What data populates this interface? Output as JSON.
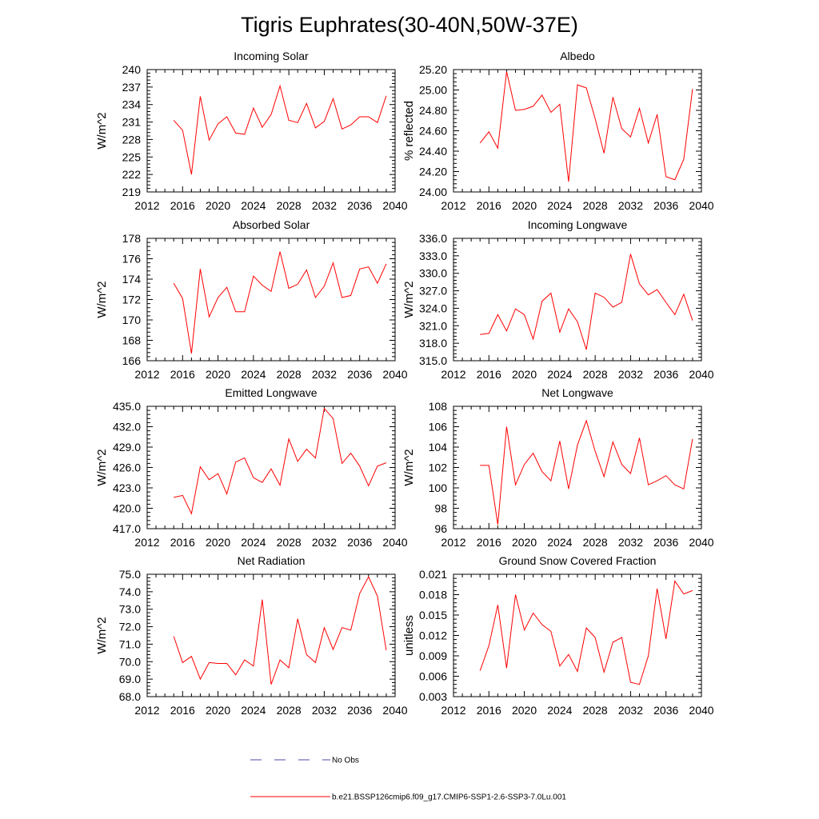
{
  "figure": {
    "title": "Tigris Euphrates(30-40N,50W-37E)"
  },
  "legend": [
    {
      "label": "No Obs",
      "color": "#4a4aa8",
      "style": "dashed"
    },
    {
      "label": "b.e21.BSSP126cmip6.f09_g17.CMIP6-SSP1-2.6-SSP3-7.0Lu.001",
      "color": "#ff0000",
      "style": "solid"
    }
  ],
  "chart_data": [
    {
      "type": "line",
      "title": "Incoming Solar",
      "xlabel": "",
      "ylabel": "W/m^2",
      "xlim": [
        2012,
        2040
      ],
      "ylim": [
        219,
        240
      ],
      "xticks": [
        2012,
        2016,
        2020,
        2024,
        2028,
        2032,
        2036,
        2040
      ],
      "yticks": [
        219,
        222,
        225,
        228,
        231,
        234,
        237,
        240
      ],
      "ytick_labels": [
        "219",
        "222",
        "225",
        "228",
        "231",
        "234",
        "237",
        "240"
      ],
      "series": [
        {
          "color": "#ff0000",
          "x": [
            2015,
            2016,
            2017,
            2018,
            2019,
            2020,
            2021,
            2022,
            2023,
            2024,
            2025,
            2026,
            2027,
            2028,
            2029,
            2030,
            2031,
            2032,
            2033,
            2034,
            2035,
            2036,
            2037,
            2038,
            2039
          ],
          "values": [
            231.3,
            229.6,
            222.0,
            235.4,
            227.9,
            230.7,
            231.9,
            229.1,
            228.9,
            233.4,
            230.1,
            232.3,
            237.2,
            231.3,
            230.9,
            234.2,
            230.0,
            231.1,
            235.0,
            229.8,
            230.5,
            231.9,
            231.9,
            230.9,
            235.5
          ]
        }
      ]
    },
    {
      "type": "line",
      "title": "Albedo",
      "xlabel": "",
      "ylabel": "% reflected",
      "xlim": [
        2012,
        2040
      ],
      "ylim": [
        24.0,
        25.2
      ],
      "xticks": [
        2012,
        2016,
        2020,
        2024,
        2028,
        2032,
        2036,
        2040
      ],
      "yticks": [
        24.0,
        24.2,
        24.4,
        24.6,
        24.8,
        25.0,
        25.2
      ],
      "ytick_labels": [
        "24.00",
        "24.20",
        "24.40",
        "24.60",
        "24.80",
        "25.00",
        "25.20"
      ],
      "series": [
        {
          "color": "#ff0000",
          "x": [
            2015,
            2016,
            2017,
            2018,
            2019,
            2020,
            2021,
            2022,
            2023,
            2024,
            2025,
            2026,
            2027,
            2028,
            2029,
            2030,
            2031,
            2032,
            2033,
            2034,
            2035,
            2036,
            2037,
            2038,
            2039
          ],
          "values": [
            24.48,
            24.59,
            24.43,
            25.18,
            24.8,
            24.81,
            24.84,
            24.95,
            24.78,
            24.86,
            24.1,
            25.05,
            25.02,
            24.72,
            24.38,
            24.93,
            24.62,
            24.54,
            24.82,
            24.48,
            24.76,
            24.15,
            24.12,
            24.32,
            25.01
          ]
        }
      ]
    },
    {
      "type": "line",
      "title": "Absorbed Solar",
      "xlabel": "",
      "ylabel": "W/m^2",
      "xlim": [
        2012,
        2040
      ],
      "ylim": [
        166,
        178
      ],
      "xticks": [
        2012,
        2016,
        2020,
        2024,
        2028,
        2032,
        2036,
        2040
      ],
      "yticks": [
        166,
        168,
        170,
        172,
        174,
        176,
        178
      ],
      "ytick_labels": [
        "166",
        "168",
        "170",
        "172",
        "174",
        "176",
        "178"
      ],
      "series": [
        {
          "color": "#ff0000",
          "x": [
            2015,
            2016,
            2017,
            2018,
            2019,
            2020,
            2021,
            2022,
            2023,
            2024,
            2025,
            2026,
            2027,
            2028,
            2029,
            2030,
            2031,
            2032,
            2033,
            2034,
            2035,
            2036,
            2037,
            2038,
            2039
          ],
          "values": [
            173.6,
            172.1,
            166.7,
            175.0,
            170.3,
            172.2,
            173.2,
            170.8,
            170.8,
            174.3,
            173.4,
            172.8,
            176.7,
            173.1,
            173.5,
            174.9,
            172.2,
            173.3,
            175.6,
            172.2,
            172.4,
            175.0,
            175.2,
            173.6,
            175.5
          ]
        }
      ]
    },
    {
      "type": "line",
      "title": "Incoming Longwave",
      "xlabel": "",
      "ylabel": "W/m^2",
      "xlim": [
        2012,
        2040
      ],
      "ylim": [
        315,
        336
      ],
      "xticks": [
        2012,
        2016,
        2020,
        2024,
        2028,
        2032,
        2036,
        2040
      ],
      "yticks": [
        315,
        318,
        321,
        324,
        327,
        330,
        333,
        336
      ],
      "ytick_labels": [
        "315.0",
        "318.0",
        "321.0",
        "324.0",
        "327.0",
        "330.0",
        "333.0",
        "336.0"
      ],
      "series": [
        {
          "color": "#ff0000",
          "x": [
            2015,
            2016,
            2017,
            2018,
            2019,
            2020,
            2021,
            2022,
            2023,
            2024,
            2025,
            2026,
            2027,
            2028,
            2029,
            2030,
            2031,
            2032,
            2033,
            2034,
            2035,
            2036,
            2037,
            2038,
            2039
          ],
          "values": [
            319.5,
            319.7,
            322.9,
            320.1,
            323.9,
            322.9,
            318.7,
            325.2,
            326.6,
            319.9,
            323.9,
            321.7,
            316.9,
            326.6,
            325.9,
            324.2,
            325.0,
            333.3,
            328.2,
            326.3,
            327.2,
            325.0,
            322.9,
            326.4,
            321.9
          ]
        }
      ]
    },
    {
      "type": "line",
      "title": "Emitted Longwave",
      "xlabel": "",
      "ylabel": "W/m^2",
      "xlim": [
        2012,
        2040
      ],
      "ylim": [
        417,
        435
      ],
      "xticks": [
        2012,
        2016,
        2020,
        2024,
        2028,
        2032,
        2036,
        2040
      ],
      "yticks": [
        417,
        420,
        423,
        426,
        429,
        432,
        435
      ],
      "ytick_labels": [
        "417.0",
        "420.0",
        "423.0",
        "426.0",
        "429.0",
        "432.0",
        "435.0"
      ],
      "series": [
        {
          "color": "#ff0000",
          "x": [
            2015,
            2016,
            2017,
            2018,
            2019,
            2020,
            2021,
            2022,
            2023,
            2024,
            2025,
            2026,
            2027,
            2028,
            2029,
            2030,
            2031,
            2032,
            2033,
            2034,
            2035,
            2036,
            2037,
            2038,
            2039
          ],
          "values": [
            421.6,
            421.9,
            419.2,
            426.1,
            424.2,
            425.1,
            422.1,
            426.8,
            427.4,
            424.5,
            423.8,
            425.8,
            423.4,
            430.2,
            426.9,
            428.7,
            427.4,
            434.7,
            433.2,
            426.6,
            428.1,
            426.2,
            423.3,
            426.2,
            426.7
          ]
        }
      ]
    },
    {
      "type": "line",
      "title": "Net Longwave",
      "xlabel": "",
      "ylabel": "W/m^2",
      "xlim": [
        2012,
        2040
      ],
      "ylim": [
        96,
        108
      ],
      "xticks": [
        2012,
        2016,
        2020,
        2024,
        2028,
        2032,
        2036,
        2040
      ],
      "yticks": [
        96,
        98,
        100,
        102,
        104,
        106,
        108
      ],
      "ytick_labels": [
        "96",
        "98",
        "100",
        "102",
        "104",
        "106",
        "108"
      ],
      "series": [
        {
          "color": "#ff0000",
          "x": [
            2015,
            2016,
            2017,
            2018,
            2019,
            2020,
            2021,
            2022,
            2023,
            2024,
            2025,
            2026,
            2027,
            2028,
            2029,
            2030,
            2031,
            2032,
            2033,
            2034,
            2035,
            2036,
            2037,
            2038,
            2039
          ],
          "values": [
            102.2,
            102.2,
            96.4,
            106.0,
            100.3,
            102.3,
            103.4,
            101.6,
            100.7,
            104.6,
            99.9,
            104.2,
            106.6,
            103.6,
            101.1,
            104.5,
            102.3,
            101.4,
            104.9,
            100.3,
            100.7,
            101.2,
            100.3,
            99.9,
            104.8
          ]
        }
      ]
    },
    {
      "type": "line",
      "title": "Net Radiation",
      "xlabel": "",
      "ylabel": "W/m^2",
      "xlim": [
        2012,
        2040
      ],
      "ylim": [
        68,
        75
      ],
      "xticks": [
        2012,
        2016,
        2020,
        2024,
        2028,
        2032,
        2036,
        2040
      ],
      "yticks": [
        68,
        69,
        70,
        71,
        72,
        73,
        74,
        75
      ],
      "ytick_labels": [
        "68.0",
        "69.0",
        "70.0",
        "71.0",
        "72.0",
        "73.0",
        "74.0",
        "75.0"
      ],
      "series": [
        {
          "color": "#ff0000",
          "x": [
            2015,
            2016,
            2017,
            2018,
            2019,
            2020,
            2021,
            2022,
            2023,
            2024,
            2025,
            2026,
            2027,
            2028,
            2029,
            2030,
            2031,
            2032,
            2033,
            2034,
            2035,
            2036,
            2037,
            2038,
            2039
          ],
          "values": [
            71.45,
            69.95,
            70.3,
            69.0,
            69.95,
            69.9,
            69.9,
            69.25,
            70.1,
            69.75,
            73.55,
            68.7,
            70.1,
            69.65,
            72.45,
            70.4,
            69.95,
            71.95,
            70.7,
            71.95,
            71.8,
            73.9,
            74.85,
            73.75,
            70.65
          ]
        }
      ]
    },
    {
      "type": "line",
      "title": "Ground Snow Covered Fraction",
      "xlabel": "",
      "ylabel": "unitless",
      "xlim": [
        2012,
        2040
      ],
      "ylim": [
        0.003,
        0.021
      ],
      "xticks": [
        2012,
        2016,
        2020,
        2024,
        2028,
        2032,
        2036,
        2040
      ],
      "yticks": [
        0.003,
        0.006,
        0.009,
        0.012,
        0.015,
        0.018,
        0.021
      ],
      "ytick_labels": [
        "0.003",
        "0.006",
        "0.009",
        "0.012",
        "0.015",
        "0.018",
        "0.021"
      ],
      "series": [
        {
          "color": "#ff0000",
          "x": [
            2015,
            2016,
            2017,
            2018,
            2019,
            2020,
            2021,
            2022,
            2023,
            2024,
            2025,
            2026,
            2027,
            2028,
            2029,
            2030,
            2031,
            2032,
            2033,
            2034,
            2035,
            2036,
            2037,
            2038,
            2039
          ],
          "values": [
            0.0068,
            0.0105,
            0.0165,
            0.0072,
            0.018,
            0.0128,
            0.0153,
            0.0136,
            0.0126,
            0.0075,
            0.0092,
            0.0067,
            0.0131,
            0.0117,
            0.0066,
            0.011,
            0.0117,
            0.0051,
            0.0048,
            0.009,
            0.0189,
            0.0115,
            0.02,
            0.0181,
            0.0186
          ]
        }
      ]
    }
  ]
}
